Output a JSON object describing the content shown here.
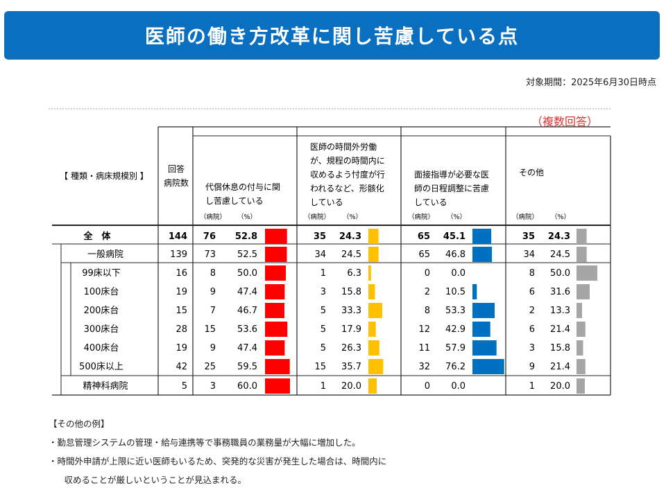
{
  "title": "医師の働き方改革に関し苦慮している点",
  "period": "対象期間：2025年6月30日時点",
  "multiple_answers": "（複数回答）",
  "table": {
    "category_header": "【 種類・病床規模別 】",
    "count_header_1": "回答",
    "count_header_2": "病院数",
    "columns": [
      {
        "lines": [
          "代償休息の付与に関",
          "し苦慮している"
        ]
      },
      {
        "lines": [
          "医師の時間外労働",
          "が、規程の時間内に",
          "収めるよう忖度が行",
          "われるなど、形骸化",
          "している"
        ]
      },
      {
        "lines": [
          "面接指導が必要な医",
          "師の日程調整に苦慮",
          "している"
        ]
      },
      {
        "lines": [
          "その他"
        ]
      }
    ],
    "unit_hospitals": "（病院）",
    "unit_percent": "（%）"
  },
  "chart_data": {
    "type": "table",
    "title": "医師の働き方改革に関し苦慮している点",
    "categories": [
      "全　体",
      "一般病院",
      "99床以下",
      "100床台",
      "200床台",
      "300床台",
      "400床台",
      "500床以上",
      "精神科病院"
    ],
    "respondents": [
      144,
      139,
      16,
      19,
      15,
      28,
      19,
      42,
      5
    ],
    "series": [
      {
        "name": "代償休息の付与に関し苦慮している",
        "color": "#ff0000",
        "counts": [
          76,
          73,
          8,
          9,
          7,
          15,
          9,
          25,
          3
        ],
        "values": [
          "52.8",
          "52.5",
          "50.0",
          "47.4",
          "46.7",
          "53.6",
          "47.4",
          "59.5",
          "60.0"
        ]
      },
      {
        "name": "医師の時間外労働が、規程の時間内に収めるよう忖度が行われるなど、形骸化している",
        "color": "#ffc000",
        "counts": [
          35,
          34,
          1,
          3,
          5,
          5,
          5,
          15,
          1
        ],
        "values": [
          "24.3",
          "24.5",
          "6.3",
          "15.8",
          "33.3",
          "17.9",
          "26.3",
          "35.7",
          "20.0"
        ]
      },
      {
        "name": "面接指導が必要な医師の日程調整に苦慮している",
        "color": "#0070c0",
        "counts": [
          65,
          65,
          0,
          2,
          8,
          12,
          11,
          32,
          0
        ],
        "values": [
          "45.1",
          "46.8",
          "0.0",
          "10.5",
          "53.3",
          "42.9",
          "57.9",
          "76.2",
          "0.0"
        ]
      },
      {
        "name": "その他",
        "color": "#a6a6a6",
        "counts": [
          35,
          34,
          8,
          6,
          2,
          6,
          3,
          9,
          1
        ],
        "values": [
          "24.3",
          "24.5",
          "50.0",
          "31.6",
          "13.3",
          "21.4",
          "15.8",
          "21.4",
          "20.0"
        ]
      }
    ],
    "bar_scale_max": 100
  },
  "notes": {
    "heading": "【その他の例】",
    "items": [
      "・勤怠管理システムの管理・給与連携等で事務職員の業務量が大幅に増加した。",
      "・時間外申請が上限に近い医師もいるため、突発的な災害が発生した場合は、時間内に",
      "　収めることが厳しいということが見込まれる。"
    ]
  }
}
